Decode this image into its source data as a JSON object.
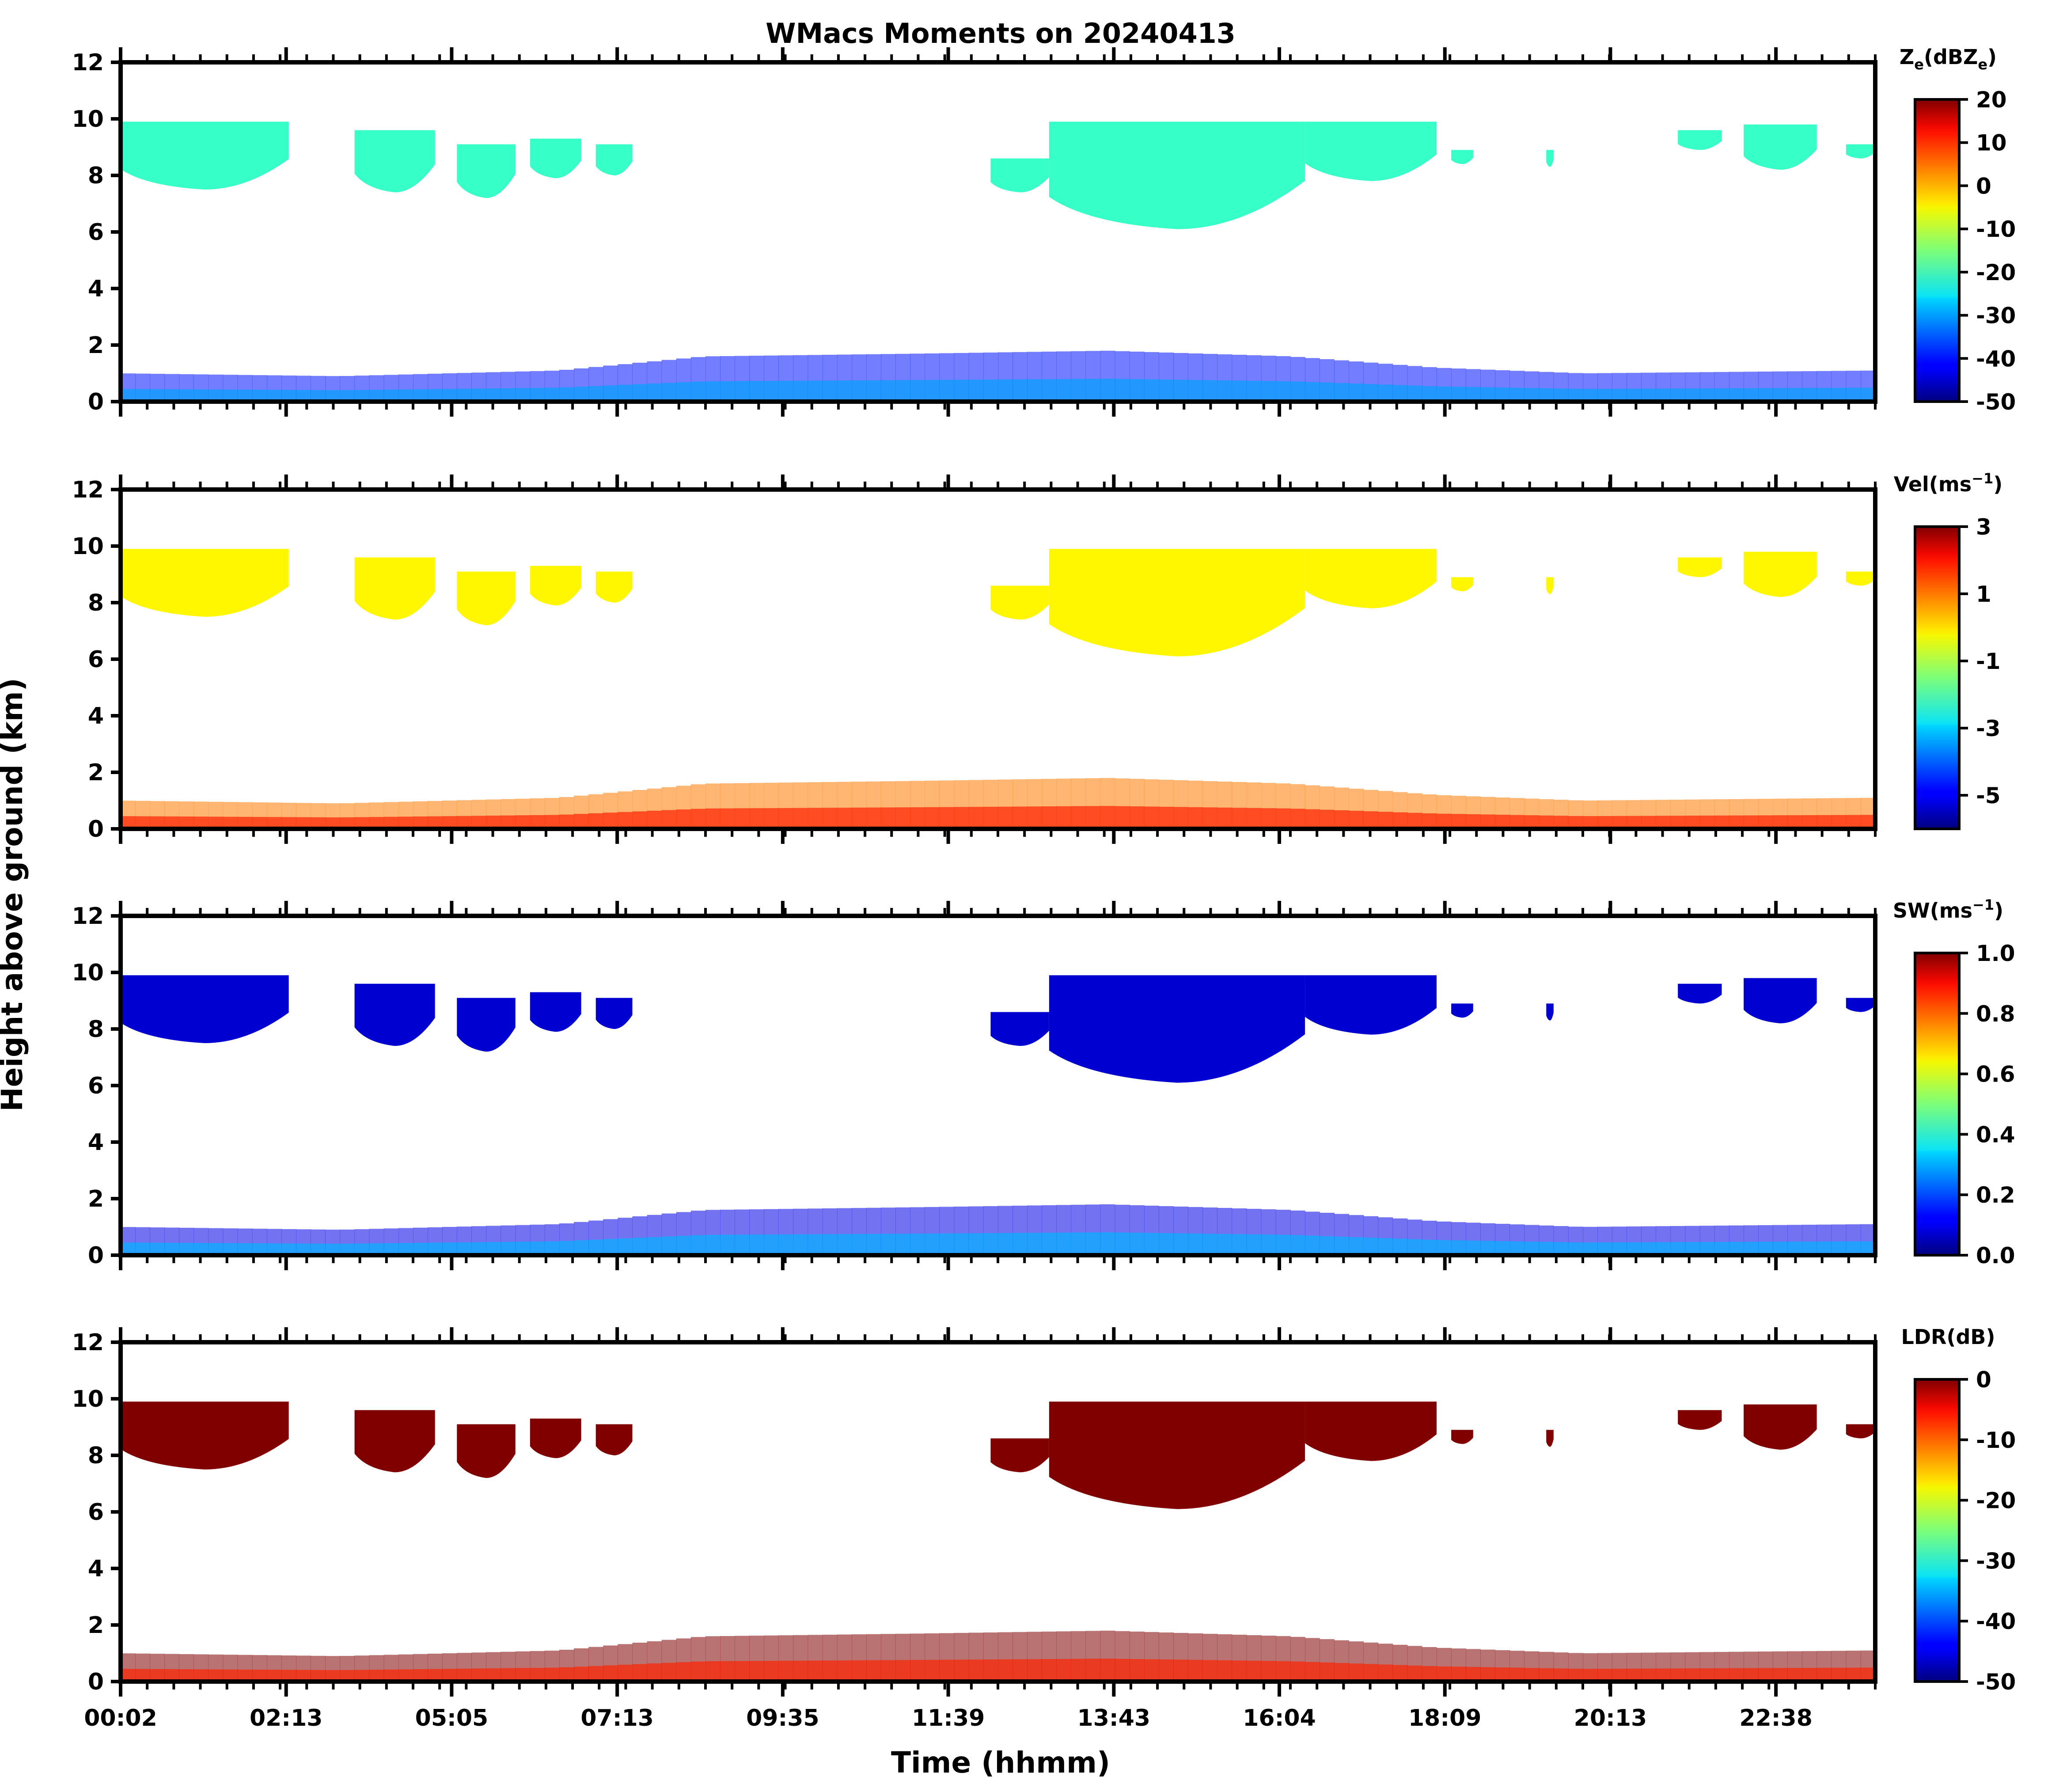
{
  "chart_data": {
    "type": "heatmap",
    "title": "WMacs Moments on 20240413",
    "ylabel": "Height above ground (km)",
    "xlabel": "Time (hhmm)",
    "x_tick_labels": [
      "00:02",
      "02:13",
      "05:05",
      "07:13",
      "09:35",
      "11:39",
      "13:43",
      "16:04",
      "18:09",
      "20:13",
      "22:38"
    ],
    "xlim": [
      0,
      24
    ],
    "ylim": [
      0,
      12
    ],
    "y_ticks": [
      0,
      2,
      4,
      6,
      8,
      10,
      12
    ],
    "panels": [
      {
        "name": "reflectivity",
        "colorbar_label": "Ze(dBZe)",
        "colorbar_label_parts": [
          "Z",
          "e",
          "(dBZ",
          "e",
          ")"
        ],
        "colormap": "jet",
        "vmin": -50,
        "vmax": 20,
        "colorbar_ticks": [
          20,
          10,
          0,
          -10,
          -20,
          -30,
          -40,
          -50
        ],
        "colorbar_tick_labels": [
          "20",
          "10",
          "0",
          "-10",
          "-20",
          "-30",
          "-40",
          "-50"
        ],
        "cirrus_value": -20,
        "boundary_value": -40,
        "boundary_core_value": -30
      },
      {
        "name": "velocity",
        "colorbar_label": "Vel(ms−1)",
        "colorbar_label_parts": [
          "Vel(ms",
          "−1",
          ")"
        ],
        "colormap": "jet",
        "vmin": -6,
        "vmax": 3,
        "colorbar_ticks": [
          3,
          1,
          -1,
          -3,
          -5
        ],
        "colorbar_tick_labels": [
          "3",
          "1",
          "-1",
          "-3",
          "-5"
        ],
        "cirrus_value": -0.3,
        "boundary_value": 0.8,
        "boundary_core_value": 1.6
      },
      {
        "name": "spectrum_width",
        "colorbar_label": "SW(ms−1)",
        "colorbar_label_parts": [
          "SW(ms",
          "−1",
          ")"
        ],
        "colormap": "jet",
        "vmin": 0,
        "vmax": 1,
        "colorbar_ticks": [
          1.0,
          0.8,
          0.6,
          0.4,
          0.2,
          0.0
        ],
        "colorbar_tick_labels": [
          "1.0",
          "0.8",
          "0.6",
          "0.4",
          "0.2",
          "0.0"
        ],
        "cirrus_value": 0.08,
        "boundary_value": 0.1,
        "boundary_core_value": 0.3
      },
      {
        "name": "ldr",
        "colorbar_label": "LDR(dB)",
        "colorbar_label_parts": [
          "LDR(dB)"
        ],
        "colormap": "jet",
        "vmin": -50,
        "vmax": 0,
        "colorbar_ticks": [
          0,
          -10,
          -20,
          -30,
          -40,
          -50
        ],
        "colorbar_tick_labels": [
          "0",
          "-10",
          "-20",
          "-30",
          "-40",
          "-50"
        ],
        "cirrus_value": 0,
        "boundary_value": 0,
        "boundary_core_value": -8
      }
    ],
    "cloud_regions": [
      {
        "kind": "cirrus",
        "t_start": 0.0,
        "t_end": 2.3,
        "base_km": 7.5,
        "top_km": 9.9
      },
      {
        "kind": "cirrus",
        "t_start": 3.2,
        "t_end": 4.3,
        "base_km": 7.4,
        "top_km": 9.6
      },
      {
        "kind": "cirrus",
        "t_start": 4.6,
        "t_end": 5.4,
        "base_km": 7.2,
        "top_km": 9.1
      },
      {
        "kind": "cirrus",
        "t_start": 5.6,
        "t_end": 6.3,
        "base_km": 7.9,
        "top_km": 9.3
      },
      {
        "kind": "cirrus",
        "t_start": 6.5,
        "t_end": 7.0,
        "base_km": 8.0,
        "top_km": 9.1
      },
      {
        "kind": "cirrus",
        "t_start": 11.9,
        "t_end": 12.7,
        "base_km": 7.4,
        "top_km": 8.6
      },
      {
        "kind": "cirrus",
        "t_start": 12.7,
        "t_end": 16.2,
        "base_km": 6.1,
        "top_km": 9.9
      },
      {
        "kind": "cirrus",
        "t_start": 16.2,
        "t_end": 18.0,
        "base_km": 7.8,
        "top_km": 9.9
      },
      {
        "kind": "cirrus",
        "t_start": 18.2,
        "t_end": 18.5,
        "base_km": 8.4,
        "top_km": 8.9
      },
      {
        "kind": "cirrus",
        "t_start": 19.5,
        "t_end": 19.6,
        "base_km": 8.3,
        "top_km": 8.9
      },
      {
        "kind": "cirrus",
        "t_start": 21.3,
        "t_end": 21.9,
        "base_km": 8.9,
        "top_km": 9.6
      },
      {
        "kind": "cirrus",
        "t_start": 22.2,
        "t_end": 23.2,
        "base_km": 8.2,
        "top_km": 9.8
      },
      {
        "kind": "cirrus",
        "t_start": 23.6,
        "t_end": 24.0,
        "base_km": 8.6,
        "top_km": 9.1
      }
    ],
    "boundary_layer": [
      {
        "t": 0,
        "top_km": 1.0
      },
      {
        "t": 3,
        "top_km": 0.9
      },
      {
        "t": 6,
        "top_km": 1.1
      },
      {
        "t": 8,
        "top_km": 1.6
      },
      {
        "t": 11,
        "top_km": 1.7
      },
      {
        "t": 13.5,
        "top_km": 1.8
      },
      {
        "t": 16,
        "top_km": 1.6
      },
      {
        "t": 18,
        "top_km": 1.2
      },
      {
        "t": 20,
        "top_km": 1.0
      },
      {
        "t": 24,
        "top_km": 1.1
      }
    ]
  }
}
